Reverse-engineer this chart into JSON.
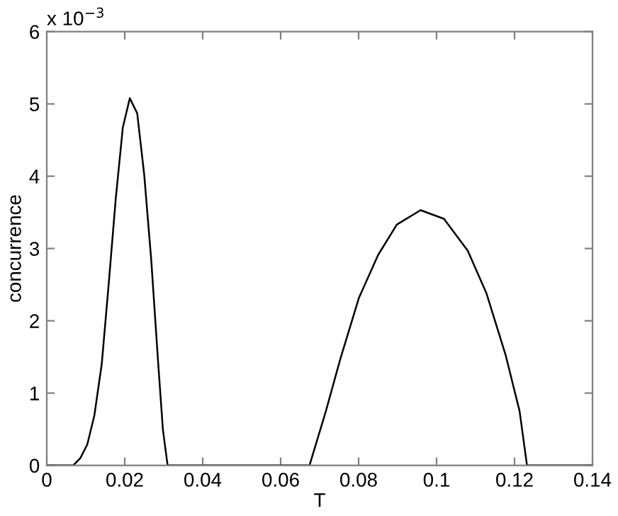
{
  "chart_data": {
    "type": "line",
    "xlabel": "T",
    "ylabel": "concurrence",
    "annotations": [
      "x 10$^{−3}$"
    ],
    "series": [
      {
        "color": "#000000",
        "x": [
          0,
          0.0068,
          0.0086,
          0.0104,
          0.0122,
          0.0141,
          0.0159,
          0.0177,
          0.0195,
          0.0213,
          0.0232,
          0.025,
          0.0268,
          0.0286,
          0.0298,
          0.031,
          0.0674,
          0.0716,
          0.0753,
          0.0801,
          0.085,
          0.0898,
          0.0959,
          0.1019,
          0.108,
          0.1128,
          0.1177,
          0.1213,
          0.1232,
          0.14
        ],
        "values": [
          0,
          0,
          0.1,
          0.29,
          0.69,
          1.4,
          2.52,
          3.69,
          4.67,
          5.08,
          4.87,
          4.02,
          2.84,
          1.4,
          0.49,
          0,
          0,
          0.75,
          1.47,
          2.32,
          2.91,
          3.33,
          3.53,
          3.41,
          2.97,
          2.38,
          1.53,
          0.75,
          0,
          0
        ]
      }
    ],
    "xlim": [
      0,
      0.14
    ],
    "xticks": [
      0,
      0.02,
      0.04,
      0.06,
      0.08,
      0.1,
      0.12,
      0.14
    ],
    "ylim": [
      0,
      6
    ],
    "yticks": [
      0,
      1,
      2,
      3,
      4,
      5,
      6
    ],
    "grid": false,
    "marker": "none",
    "line_style": "solid"
  }
}
